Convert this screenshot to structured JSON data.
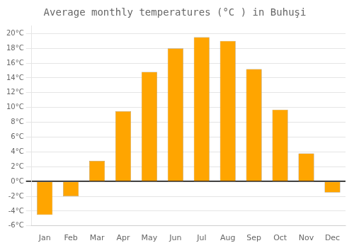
{
  "chart_data": {
    "type": "bar",
    "title": "Average monthly temperatures (°C ) in Buhuşi",
    "categories": [
      "Jan",
      "Feb",
      "Mar",
      "Apr",
      "May",
      "Jun",
      "Jul",
      "Aug",
      "Sep",
      "Oct",
      "Nov",
      "Dec"
    ],
    "values": [
      -4.5,
      -2.0,
      2.8,
      9.5,
      14.8,
      18.0,
      19.5,
      19.0,
      15.2,
      9.7,
      3.8,
      -1.5
    ],
    "color": "#FFA500",
    "ylim": [
      -6,
      21
    ],
    "yticks": [
      {
        "value": -6,
        "label": "-6°C"
      },
      {
        "value": -4,
        "label": "-4°C"
      },
      {
        "value": -2,
        "label": "-2°C"
      },
      {
        "value": 0,
        "label": "0°C"
      },
      {
        "value": 2,
        "label": "2°C"
      },
      {
        "value": 4,
        "label": "4°C"
      },
      {
        "value": 6,
        "label": "6°C"
      },
      {
        "value": 8,
        "label": "8°C"
      },
      {
        "value": 10,
        "label": "10°C"
      },
      {
        "value": 12,
        "label": "12°C"
      },
      {
        "value": 14,
        "label": "14°C"
      },
      {
        "value": 16,
        "label": "16°C"
      },
      {
        "value": 18,
        "label": "18°C"
      },
      {
        "value": 20,
        "label": "20°C"
      }
    ],
    "grid": true
  }
}
